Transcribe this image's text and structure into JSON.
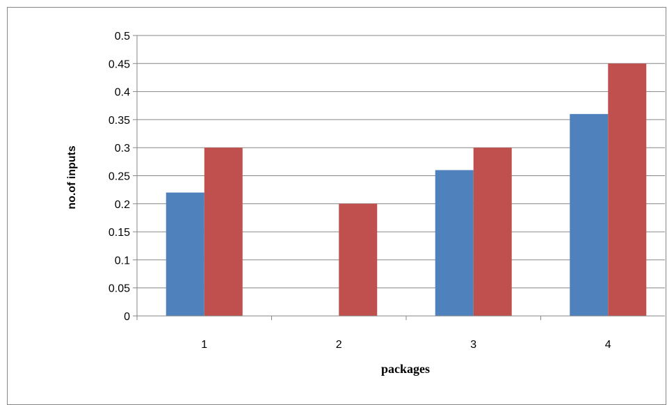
{
  "chart_data": {
    "type": "bar",
    "title": "",
    "xlabel": "packages",
    "ylabel": "no.of inputs",
    "categories": [
      "1",
      "2",
      "3",
      "4"
    ],
    "series": [
      {
        "values": [
          0.22,
          0,
          0.26,
          0.36
        ],
        "color": "#4f81bd"
      },
      {
        "values": [
          0.3,
          0.2,
          0.3,
          0.45
        ],
        "color": "#c0504d"
      }
    ],
    "ylim": [
      0,
      0.5
    ],
    "yticks": [
      "0",
      "0.05",
      "0.1",
      "0.15",
      "0.2",
      "0.25",
      "0.3",
      "0.35",
      "0.4",
      "0.45",
      "0.5"
    ],
    "grid": true,
    "legend": "none"
  }
}
